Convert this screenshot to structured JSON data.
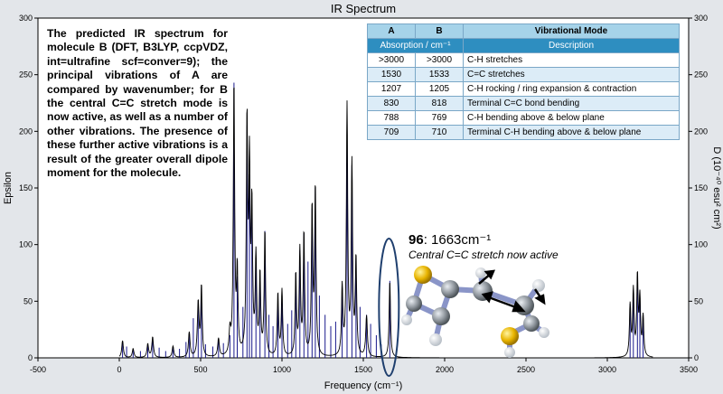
{
  "chart_data": {
    "type": "line",
    "title": "IR Spectrum",
    "xlabel": "Frequency (cm⁻¹)",
    "ylabel": "Epsilon",
    "y2label": "D (10⁻⁴⁰ esu² cm²)",
    "xlim": [
      -500,
      3500
    ],
    "ylim": [
      0,
      300
    ],
    "y2lim": [
      0,
      300
    ],
    "xticks": [
      -500,
      0,
      500,
      1000,
      1500,
      2000,
      2500,
      3000,
      3500
    ],
    "yticks": [
      0,
      50,
      100,
      150,
      200,
      250,
      300
    ],
    "grid": false,
    "colors": {
      "spectrum": "#000000",
      "sticks": "#1a1a8c",
      "highlight": "#1f3f6e"
    },
    "sticks": [
      [
        20,
        15
      ],
      [
        45,
        10
      ],
      [
        85,
        8
      ],
      [
        130,
        6
      ],
      [
        175,
        12
      ],
      [
        205,
        18
      ],
      [
        245,
        9
      ],
      [
        285,
        6
      ],
      [
        330,
        10
      ],
      [
        370,
        8
      ],
      [
        410,
        14
      ],
      [
        430,
        22
      ],
      [
        455,
        35
      ],
      [
        485,
        48
      ],
      [
        505,
        62
      ],
      [
        530,
        12
      ],
      [
        575,
        10
      ],
      [
        610,
        16
      ],
      [
        640,
        13
      ],
      [
        680,
        20
      ],
      [
        705,
        243
      ],
      [
        725,
        72
      ],
      [
        760,
        45
      ],
      [
        785,
        205
      ],
      [
        800,
        162
      ],
      [
        815,
        128
      ],
      [
        840,
        88
      ],
      [
        865,
        70
      ],
      [
        895,
        112
      ],
      [
        920,
        38
      ],
      [
        945,
        28
      ],
      [
        975,
        55
      ],
      [
        1000,
        60
      ],
      [
        1035,
        30
      ],
      [
        1060,
        42
      ],
      [
        1085,
        75
      ],
      [
        1110,
        95
      ],
      [
        1135,
        110
      ],
      [
        1160,
        85
      ],
      [
        1185,
        132
      ],
      [
        1205,
        150
      ],
      [
        1230,
        55
      ],
      [
        1265,
        38
      ],
      [
        1300,
        28
      ],
      [
        1330,
        32
      ],
      [
        1370,
        62
      ],
      [
        1400,
        222
      ],
      [
        1430,
        170
      ],
      [
        1455,
        88
      ],
      [
        1480,
        45
      ],
      [
        1520,
        38
      ],
      [
        1545,
        30
      ],
      [
        1580,
        20
      ],
      [
        1610,
        12
      ],
      [
        1663,
        68
      ],
      [
        3140,
        48
      ],
      [
        3160,
        60
      ],
      [
        3185,
        72
      ],
      [
        3200,
        52
      ],
      [
        3220,
        38
      ]
    ],
    "peaks": [
      [
        20,
        15,
        6
      ],
      [
        85,
        8,
        6
      ],
      [
        175,
        12,
        6
      ],
      [
        205,
        18,
        6
      ],
      [
        330,
        10,
        6
      ],
      [
        430,
        22,
        6
      ],
      [
        485,
        48,
        6
      ],
      [
        505,
        62,
        5
      ],
      [
        610,
        16,
        6
      ],
      [
        680,
        20,
        6
      ],
      [
        705,
        240,
        5
      ],
      [
        725,
        72,
        5
      ],
      [
        785,
        203,
        5
      ],
      [
        800,
        160,
        5
      ],
      [
        815,
        125,
        5
      ],
      [
        840,
        85,
        5
      ],
      [
        865,
        70,
        5
      ],
      [
        895,
        110,
        5
      ],
      [
        975,
        55,
        5
      ],
      [
        1000,
        58,
        5
      ],
      [
        1085,
        72,
        5
      ],
      [
        1110,
        92,
        5
      ],
      [
        1135,
        108,
        5
      ],
      [
        1185,
        130,
        5
      ],
      [
        1205,
        148,
        5
      ],
      [
        1370,
        60,
        5
      ],
      [
        1400,
        220,
        5
      ],
      [
        1430,
        168,
        5
      ],
      [
        1455,
        85,
        5
      ],
      [
        1520,
        36,
        6
      ],
      [
        1663,
        68,
        5
      ],
      [
        3140,
        45,
        5
      ],
      [
        3160,
        58,
        5
      ],
      [
        3185,
        70,
        5
      ],
      [
        3200,
        50,
        5
      ],
      [
        3220,
        35,
        5
      ]
    ],
    "highlight_x": 1663
  },
  "description": "The predicted IR spectrum for molecule B (DFT, B3LYP, ccpVDZ, int=ultrafine scf=conver=9); the principal vibrations of A are compared by wavenumber; for B the central C=C stretch mode is now active, as well as a number of other vibrations. The presence of these further active vibrations is a result of the greater overall dipole moment for the molecule.",
  "table": {
    "col_a": "A",
    "col_b": "B",
    "col_mode": "Vibrational Mode",
    "sub_absorption": "Absorption / cm⁻¹",
    "sub_description": "Description",
    "rows": [
      {
        "a": ">3000",
        "b": ">3000",
        "mode": "C-H stretches"
      },
      {
        "a": "1530",
        "b": "1533",
        "mode": "C=C stretches"
      },
      {
        "a": "1207",
        "b": "1205",
        "mode": "C-H rocking / ring expansion & contraction"
      },
      {
        "a": "830",
        "b": "818",
        "mode": "Terminal C=C bond bending"
      },
      {
        "a": "788",
        "b": "769",
        "mode": "C-H bending above & below plane"
      },
      {
        "a": "709",
        "b": "710",
        "mode": "Terminal C-H bending above & below plane"
      }
    ]
  },
  "annotation": {
    "mode_number": "96",
    "frequency": ": 1663cm⁻¹",
    "caption": "Central C=C stretch now active"
  }
}
